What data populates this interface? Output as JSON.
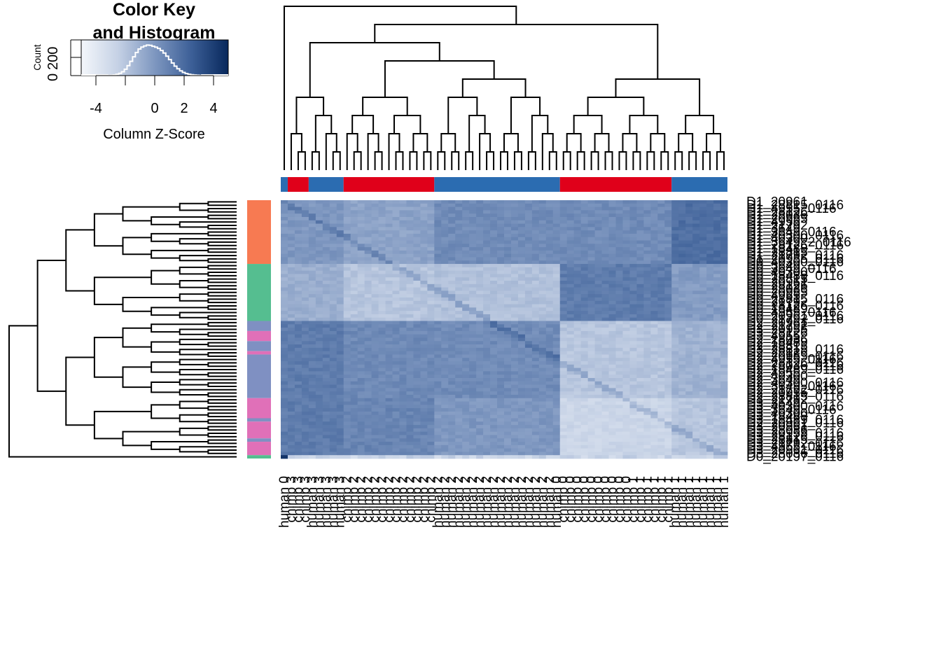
{
  "chart_data": {
    "type": "heatmap",
    "color_key": {
      "title_line1": "Color Key",
      "title_line2": "and Histogram",
      "xlabel": "Column Z-Score",
      "ylabel": "Count",
      "x_ticks": [
        "-4",
        "0",
        "2",
        "4"
      ],
      "y_ticks": [
        "0",
        "200"
      ],
      "x_range": [
        -5,
        5
      ],
      "colors": {
        "low": "#f4f7fb",
        "mid": "#7e97c0",
        "high": "#08285c"
      },
      "histogram": [
        2,
        3,
        5,
        9,
        16,
        27,
        45,
        70,
        100,
        132,
        162,
        186,
        200,
        208,
        214,
        212,
        205,
        199,
        190,
        176,
        158,
        136,
        112,
        88,
        66,
        48,
        33,
        22,
        14,
        9,
        6,
        4,
        3,
        2
      ]
    },
    "column_groups": [
      {
        "color": "#2b6cb1",
        "start": 0,
        "end": 1
      },
      {
        "color": "#e0001a",
        "start": 1,
        "end": 4
      },
      {
        "color": "#2b6cb1",
        "start": 4,
        "end": 9
      },
      {
        "color": "#e0001a",
        "start": 9,
        "end": 22
      },
      {
        "color": "#2b6cb1",
        "start": 22,
        "end": 40
      },
      {
        "color": "#e0001a",
        "start": 40,
        "end": 56
      },
      {
        "color": "#2b6cb1",
        "start": 56,
        "end": 64
      }
    ],
    "row_groups": [
      {
        "color": "#f77a52",
        "start": 0,
        "end": 19
      },
      {
        "color": "#55be90",
        "start": 19,
        "end": 36
      },
      {
        "color": "#7f90c2",
        "start": 36,
        "end": 39
      },
      {
        "color": "#e070b8",
        "start": 39,
        "end": 42
      },
      {
        "color": "#7f90c2",
        "start": 42,
        "end": 45
      },
      {
        "color": "#e070b8",
        "start": 45,
        "end": 46
      },
      {
        "color": "#7f90c2",
        "start": 46,
        "end": 59
      },
      {
        "color": "#e070b8",
        "start": 59,
        "end": 65
      },
      {
        "color": "#7f90c2",
        "start": 65,
        "end": 66
      },
      {
        "color": "#e070b8",
        "start": 66,
        "end": 71
      },
      {
        "color": "#7f90c2",
        "start": 71,
        "end": 72
      },
      {
        "color": "#e070b8",
        "start": 72,
        "end": 76
      },
      {
        "color": "#55be90",
        "start": 76,
        "end": 77
      }
    ],
    "column_labels": [
      "human 0",
      "chimp 3",
      "chimp 3",
      "chimp 3",
      "human 3",
      "human 3",
      "human 3",
      "human 3",
      "human 3",
      "chimp 2",
      "chimp 2",
      "chimp 2",
      "chimp 2",
      "chimp 2",
      "chimp 2",
      "chimp 2",
      "chimp 2",
      "chimp 2",
      "chimp 2",
      "chimp 2",
      "chimp 2",
      "chimp 2",
      "human 2",
      "human 2",
      "human 2",
      "human 2",
      "human 2",
      "human 2",
      "human 2",
      "human 2",
      "human 2",
      "human 2",
      "human 2",
      "human 2",
      "human 2",
      "human 2",
      "human 2",
      "human 2",
      "human 2",
      "human 0",
      "chimp 0",
      "chimp 0",
      "chimp 0",
      "chimp 0",
      "chimp 0",
      "chimp 0",
      "chimp 0",
      "chimp 0",
      "chimp 0",
      "chimp 0",
      "chimp 1",
      "chimp 1",
      "chimp 1",
      "chimp 1",
      "chimp 1",
      "chimp 1",
      "human 1",
      "human 1",
      "human 1",
      "human 1",
      "human 1",
      "human 1",
      "human 1",
      "human 1"
    ],
    "row_labels": [
      "D1_20961",
      "D1_28815_0116",
      "D1_4955_0116",
      "D1_28126",
      "D1_28036",
      "D1_20955",
      "D1_4955",
      "D1_21792",
      "D1_3649",
      "D1_3649_0116",
      "D1_40300_0116",
      "D1_40300",
      "D1_3649_2_0116",
      "D1_28126_0116",
      "D1_18489",
      "D1_28815",
      "D1_21792_0116",
      "D1_20955_0116",
      "D0_40300_0116",
      "D0_3649",
      "D0_3649_0116",
      "D0_40300",
      "D0_18489_0116",
      "D0_28815",
      "D0_20961",
      "D0_28126",
      "D0_28036",
      "D0_20955",
      "D0_4955",
      "D0_28815_0116",
      "D0_21792",
      "D0_28126_0116",
      "D0_18489",
      "D0_4955_0116",
      "D0_20961_0116",
      "D0_21792_0116",
      "D2_20961",
      "D2_21792",
      "D3_20955",
      "D3_28126",
      "D3_4955",
      "D2_28036",
      "D2_18489",
      "D2_28815",
      "D3_28815_0116",
      "D2_28126",
      "D2_20955_0116",
      "D2_4955_0116",
      "D2_28126_0116",
      "D2_28036_0116",
      "D2_18489_0116",
      "D2_4955",
      "D2_40300",
      "D2_3649",
      "D2_40300_0116",
      "D2_3649_0116",
      "D2_21792_0116",
      "D2_20955",
      "D2_28815_0116",
      "D3_21792",
      "D3_3649",
      "D3_40300_0116",
      "D3_3649_0116",
      "D3_40300",
      "D3_18489",
      "D3_18489_0116",
      "D2_20961_0116",
      "D3_20961",
      "D3_28036",
      "D3_20955_0116",
      "D3_28126_0116",
      "D3_28815",
      "D3_21792_0116",
      "D3_4955_0116",
      "D3_20961_0116",
      "D3_28036_0116",
      "D0_20197_0116"
    ]
  }
}
